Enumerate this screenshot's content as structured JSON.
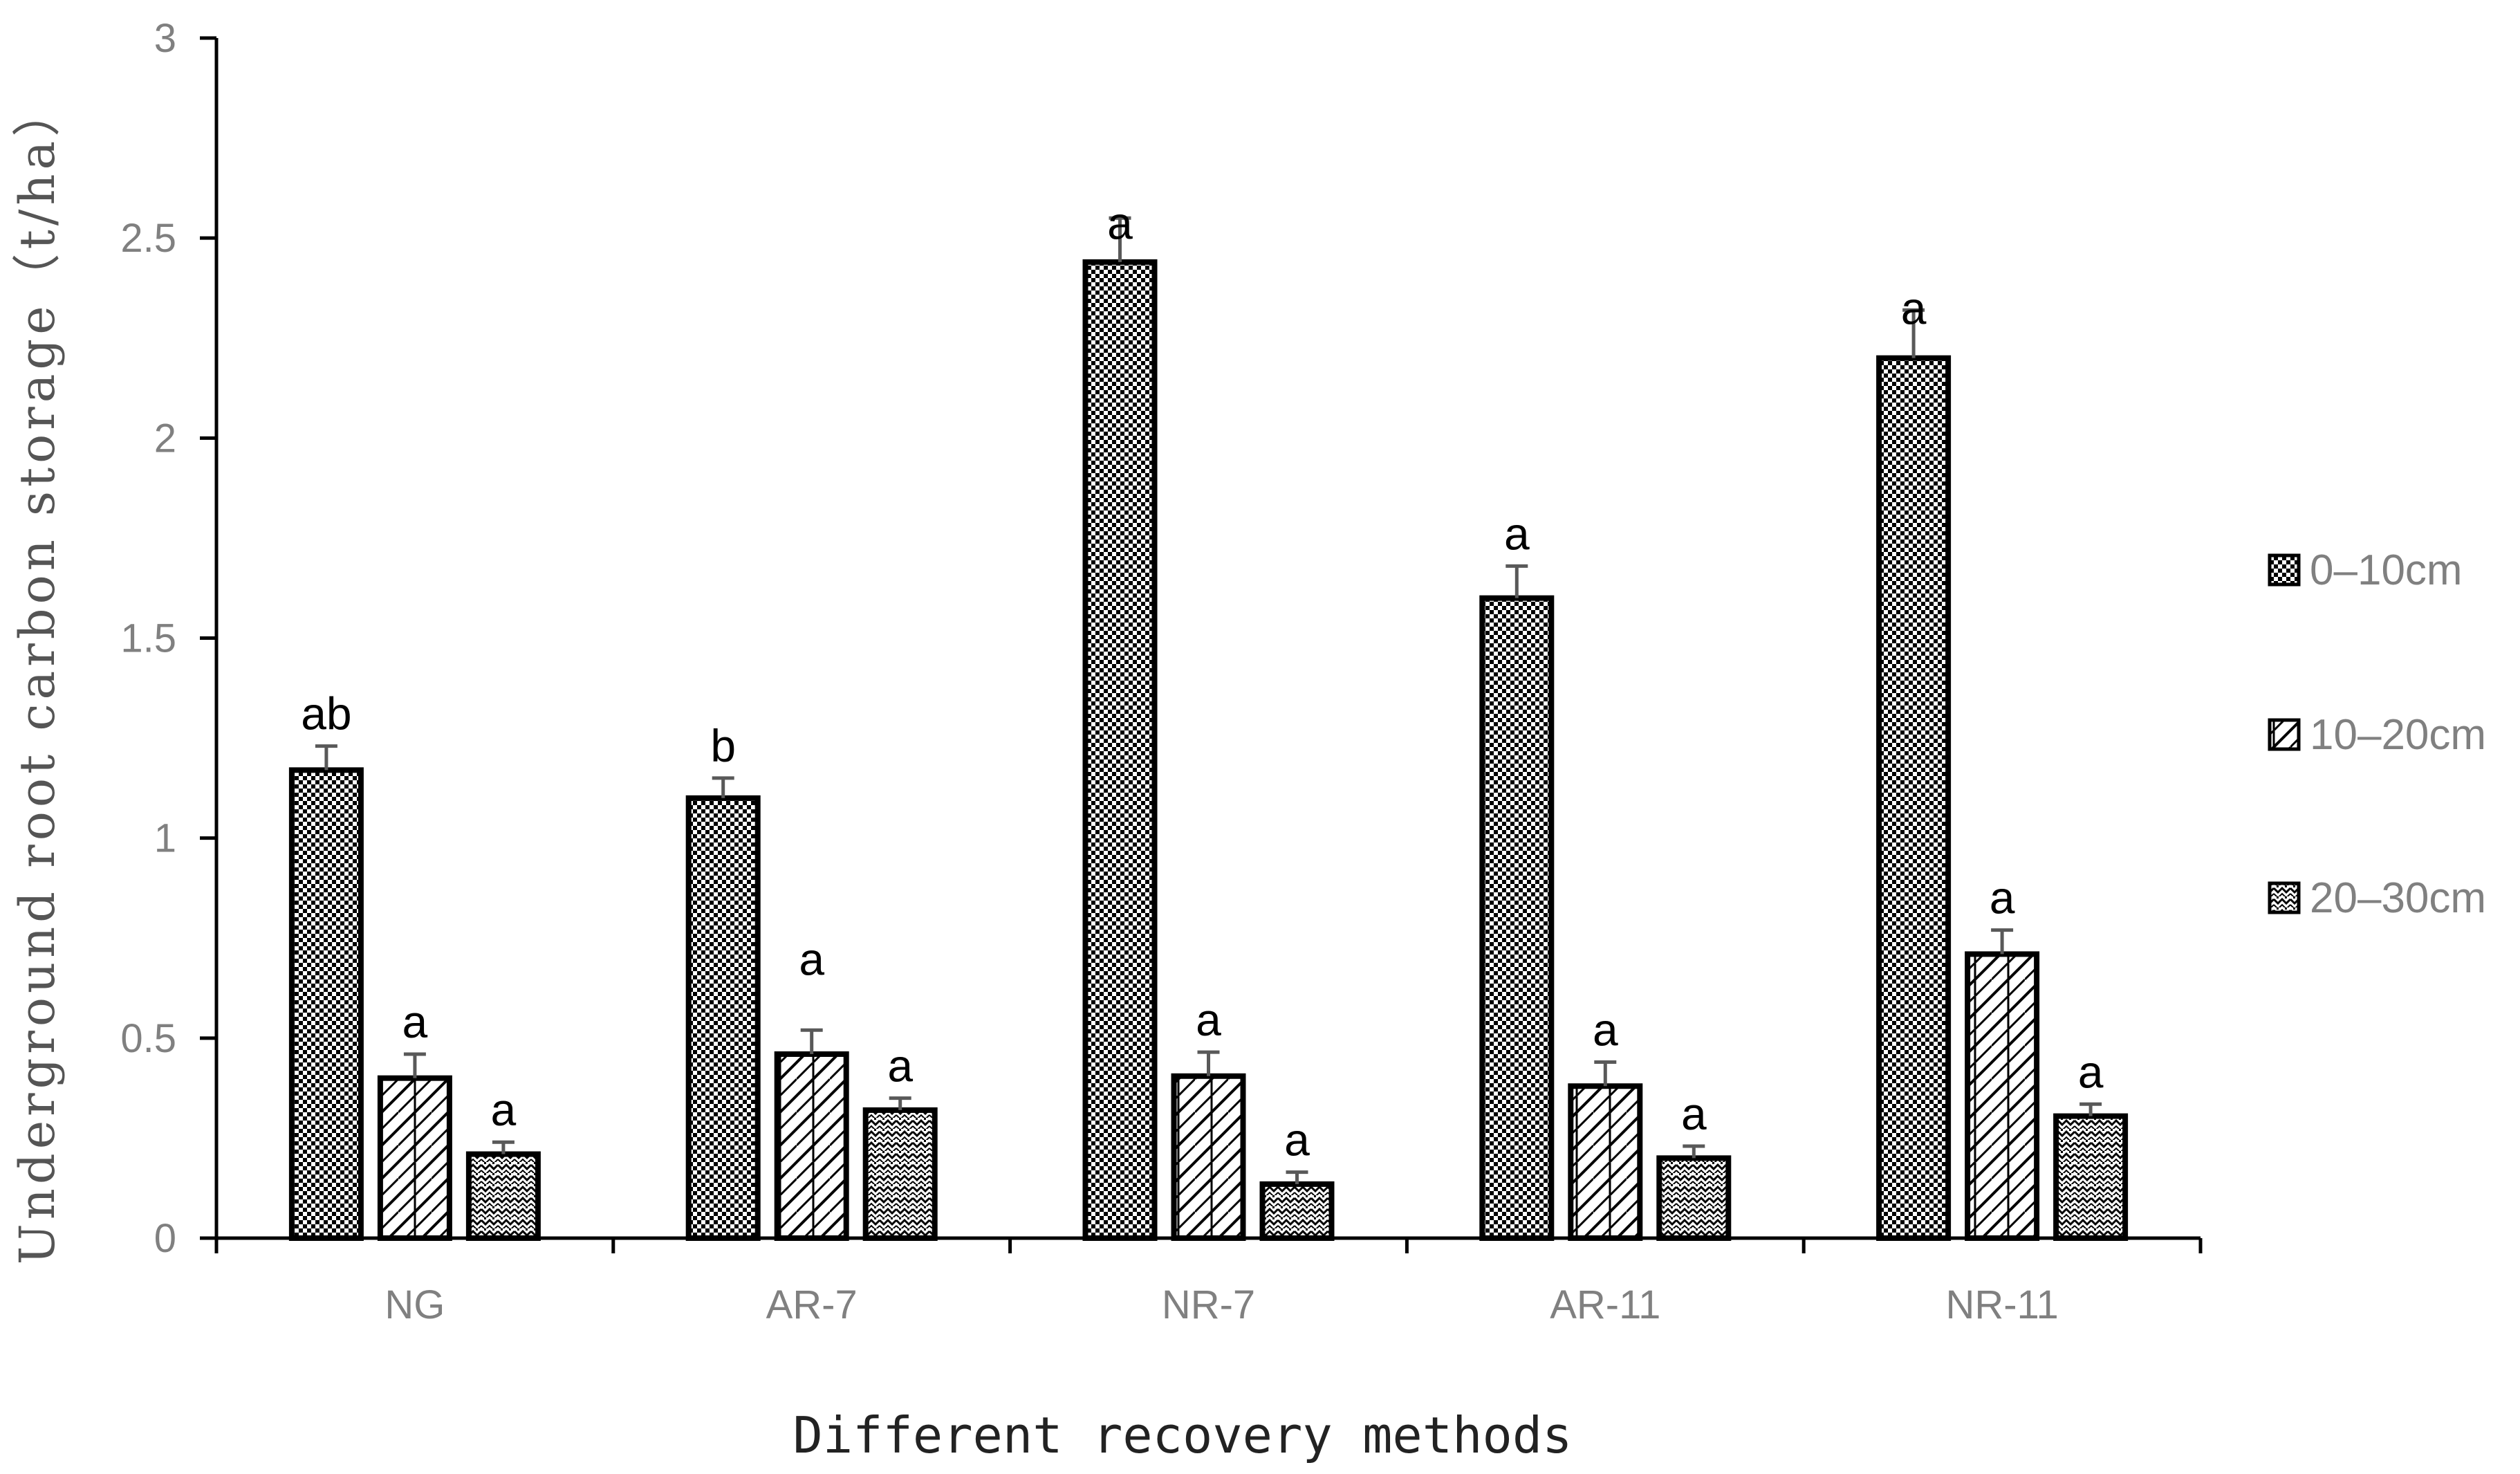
{
  "chart_data": {
    "type": "bar",
    "title": "",
    "xlabel": "Different recovery methods",
    "ylabel": "Underground root carbon storage（t/ha）",
    "ylim": [
      0,
      3
    ],
    "yticks": [
      "0",
      "0.5",
      "1",
      "1.5",
      "2",
      "2.5",
      "3"
    ],
    "grid": false,
    "legend_position": "right",
    "categories": [
      "NG",
      "AR-7",
      "NR-7",
      "AR-11",
      "NR-11"
    ],
    "series": [
      {
        "name": "0–10cm",
        "pattern": "dots",
        "values": [
          1.17,
          1.1,
          2.44,
          1.6,
          2.2
        ],
        "errors": [
          0.06,
          0.05,
          0.11,
          0.08,
          0.12
        ],
        "letters": [
          "ab",
          "b",
          "a",
          "a",
          "a"
        ]
      },
      {
        "name": "10–20cm",
        "pattern": "zigzag",
        "values": [
          0.4,
          0.46,
          0.405,
          0.38,
          0.71
        ],
        "errors": [
          0.06,
          0.06,
          0.06,
          0.06,
          0.06
        ],
        "letters": [
          "a",
          "a",
          "a",
          "a",
          "a"
        ]
      },
      {
        "name": "20–30cm",
        "pattern": "waves",
        "values": [
          0.21,
          0.32,
          0.135,
          0.2,
          0.305
        ],
        "errors": [
          0.03,
          0.03,
          0.03,
          0.03,
          0.03
        ],
        "letters": [
          "a",
          "a",
          "a",
          "a",
          "a"
        ]
      }
    ]
  }
}
